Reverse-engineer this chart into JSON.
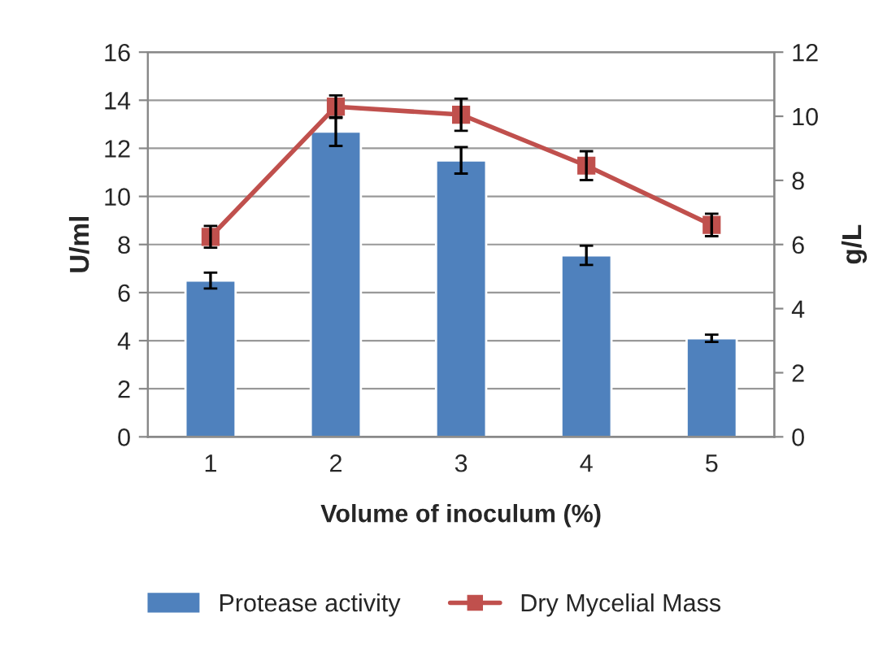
{
  "chart_data": {
    "type": "bar",
    "xlabel": "Volume of inoculum (%)",
    "ylabel": "U/ml",
    "y2label": "g/L",
    "categories": [
      "1",
      "2",
      "3",
      "4",
      "5"
    ],
    "series": [
      {
        "name": "Protease activity",
        "color": "#4f81bd",
        "values": [
          6.5,
          12.7,
          11.5,
          7.55,
          4.1
        ],
        "errors": [
          0.33,
          0.6,
          0.55,
          0.4,
          0.15
        ]
      },
      {
        "name": "Dry Mycelial Mass",
        "type": "line",
        "axis": "y2",
        "color": "#c0504d",
        "marker": "square",
        "values": [
          6.24,
          10.3,
          10.05,
          8.46,
          6.61
        ],
        "errors": [
          0.34,
          0.35,
          0.5,
          0.45,
          0.35
        ]
      }
    ],
    "ylim": [
      0,
      16
    ],
    "yticks": [
      0,
      2,
      4,
      6,
      8,
      10,
      12,
      14,
      16
    ],
    "y2lim": [
      0,
      12
    ],
    "y2ticks": [
      0,
      2,
      4,
      6,
      8,
      10,
      12
    ],
    "grid": "y",
    "legend": "bottom"
  }
}
